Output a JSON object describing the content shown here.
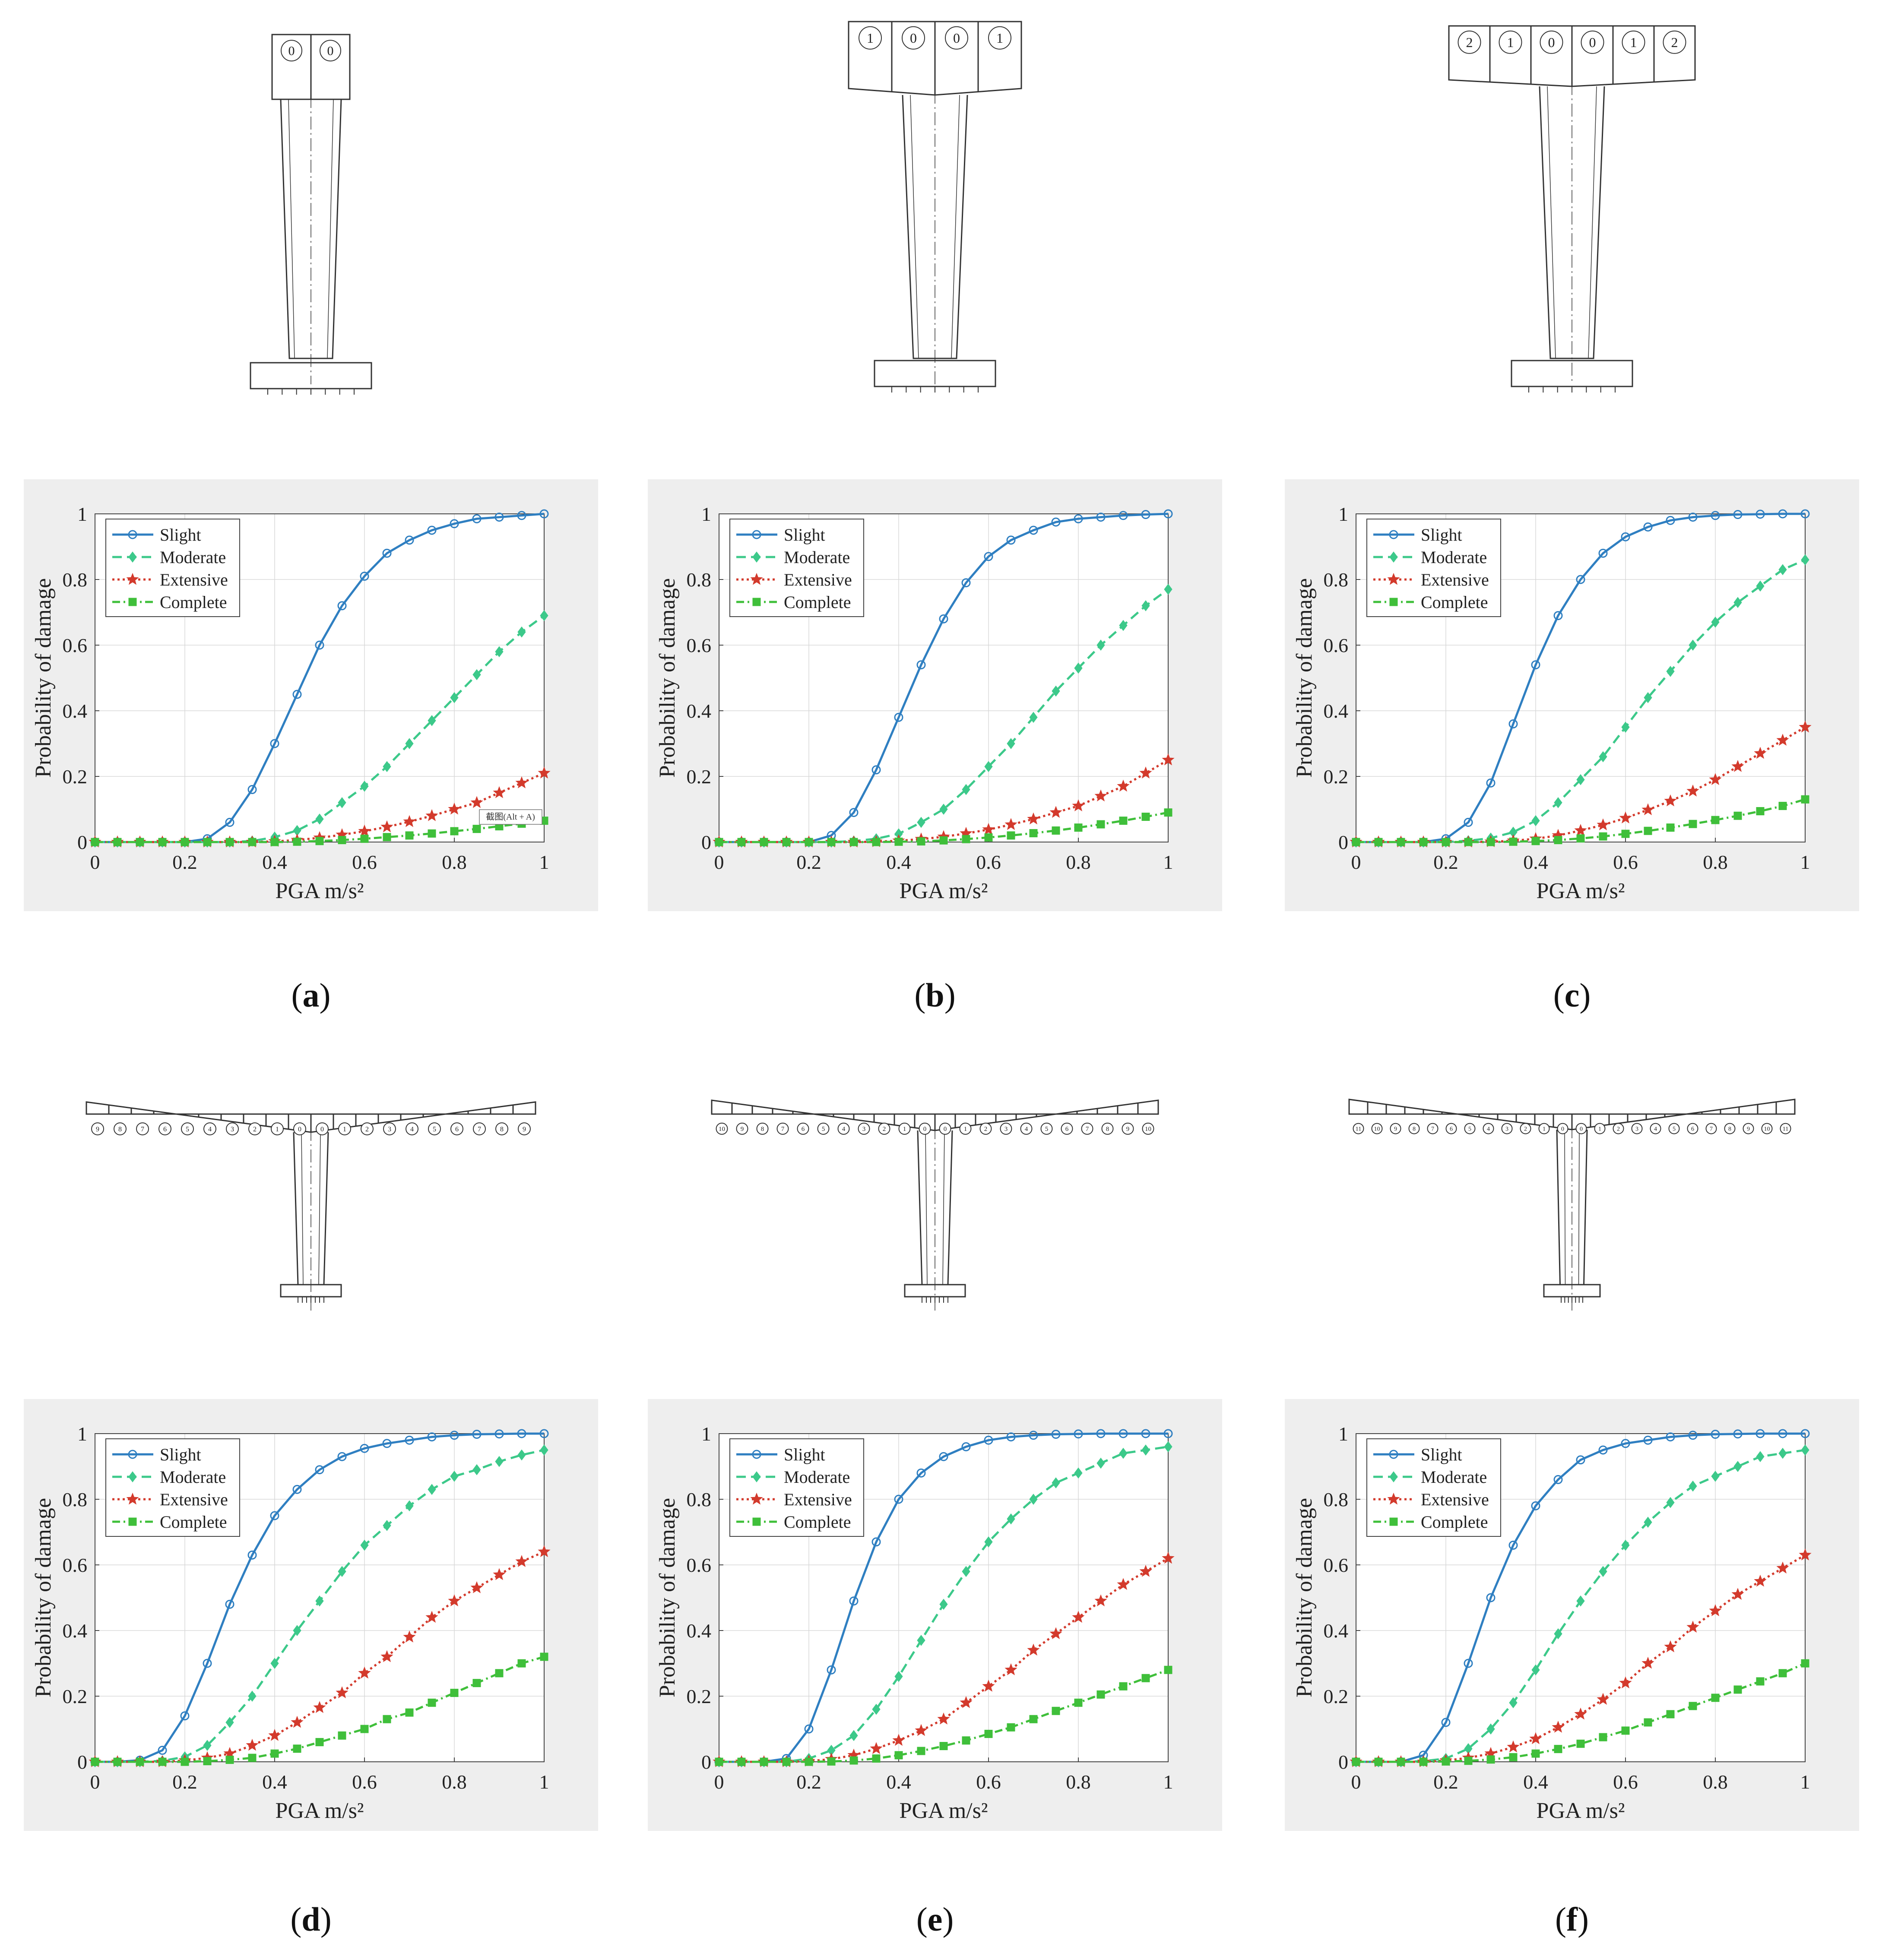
{
  "figure": {
    "panels": [
      {
        "id": "a",
        "caption_letter": "a",
        "segments": [
          "0",
          "0"
        ],
        "note": "截图(Alt + A)"
      },
      {
        "id": "b",
        "caption_letter": "b",
        "segments": [
          "1",
          "0",
          "0",
          "1"
        ]
      },
      {
        "id": "c",
        "caption_letter": "c",
        "segments": [
          "2",
          "1",
          "0",
          "0",
          "1",
          "2"
        ]
      },
      {
        "id": "d",
        "caption_letter": "d",
        "segments": [
          "9",
          "8",
          "7",
          "6",
          "5",
          "4",
          "3",
          "2",
          "1",
          "0",
          "0",
          "1",
          "2",
          "3",
          "4",
          "5",
          "6",
          "7",
          "8",
          "9"
        ]
      },
      {
        "id": "e",
        "caption_letter": "e",
        "segments": [
          "10",
          "9",
          "8",
          "7",
          "6",
          "5",
          "4",
          "3",
          "2",
          "1",
          "0",
          "0",
          "1",
          "2",
          "3",
          "4",
          "5",
          "6",
          "7",
          "8",
          "9",
          "10"
        ]
      },
      {
        "id": "f",
        "caption_letter": "f",
        "segments": [
          "11",
          "10",
          "9",
          "8",
          "7",
          "6",
          "5",
          "4",
          "3",
          "2",
          "1",
          "0",
          "0",
          "1",
          "2",
          "3",
          "4",
          "5",
          "6",
          "7",
          "8",
          "9",
          "10",
          "11"
        ]
      }
    ]
  },
  "chart_data": [
    {
      "panel": "a",
      "type": "line",
      "xlabel": "PGA  m/s²",
      "ylabel": "Probability of damage",
      "xlim": [
        0,
        1
      ],
      "ylim": [
        0,
        1
      ],
      "xticks": [
        "0",
        "0.2",
        "0.4",
        "0.6",
        "0.8",
        "1"
      ],
      "yticks": [
        "0",
        "0.2",
        "0.4",
        "0.6",
        "0.8",
        "1"
      ],
      "legend_position": "top-left",
      "x": [
        0,
        0.05,
        0.1,
        0.15,
        0.2,
        0.25,
        0.3,
        0.35,
        0.4,
        0.45,
        0.5,
        0.55,
        0.6,
        0.65,
        0.7,
        0.75,
        0.8,
        0.85,
        0.9,
        0.95,
        1.0
      ],
      "series": [
        {
          "name": "Slight",
          "color": "#2f7fc1",
          "marker": "circle",
          "dash": "solid",
          "values": [
            0,
            0,
            0,
            0,
            0,
            0.01,
            0.06,
            0.16,
            0.3,
            0.45,
            0.6,
            0.72,
            0.81,
            0.88,
            0.92,
            0.95,
            0.97,
            0.985,
            0.99,
            0.995,
            1.0
          ]
        },
        {
          "name": "Moderate",
          "color": "#3cc98a",
          "marker": "diamond",
          "dash": "dashed",
          "values": [
            0,
            0,
            0,
            0,
            0,
            0,
            0,
            0.003,
            0.015,
            0.035,
            0.07,
            0.12,
            0.17,
            0.23,
            0.3,
            0.37,
            0.44,
            0.51,
            0.58,
            0.64,
            0.69
          ]
        },
        {
          "name": "Extensive",
          "color": "#d33a2c",
          "marker": "star",
          "dash": "dotted",
          "values": [
            0,
            0,
            0,
            0,
            0,
            0,
            0,
            0,
            0.002,
            0.006,
            0.013,
            0.022,
            0.033,
            0.046,
            0.062,
            0.08,
            0.1,
            0.12,
            0.15,
            0.18,
            0.21
          ]
        },
        {
          "name": "Complete",
          "color": "#3fbf3a",
          "marker": "square",
          "dash": "dashdot",
          "values": [
            0,
            0,
            0,
            0,
            0,
            0,
            0,
            0,
            0,
            0.001,
            0.003,
            0.006,
            0.01,
            0.015,
            0.02,
            0.026,
            0.033,
            0.04,
            0.048,
            0.056,
            0.065
          ]
        }
      ]
    },
    {
      "panel": "b",
      "type": "line",
      "xlabel": "PGA  m/s²",
      "ylabel": "Probability of damage",
      "xlim": [
        0,
        1
      ],
      "ylim": [
        0,
        1
      ],
      "xticks": [
        "0",
        "0.2",
        "0.4",
        "0.6",
        "0.8",
        "1"
      ],
      "yticks": [
        "0",
        "0.2",
        "0.4",
        "0.6",
        "0.8",
        "1"
      ],
      "legend_position": "top-left",
      "x": [
        0,
        0.05,
        0.1,
        0.15,
        0.2,
        0.25,
        0.3,
        0.35,
        0.4,
        0.45,
        0.5,
        0.55,
        0.6,
        0.65,
        0.7,
        0.75,
        0.8,
        0.85,
        0.9,
        0.95,
        1.0
      ],
      "series": [
        {
          "name": "Slight",
          "color": "#2f7fc1",
          "marker": "circle",
          "dash": "solid",
          "values": [
            0,
            0,
            0,
            0,
            0,
            0.02,
            0.09,
            0.22,
            0.38,
            0.54,
            0.68,
            0.79,
            0.87,
            0.92,
            0.95,
            0.975,
            0.985,
            0.99,
            0.995,
            0.998,
            1.0
          ]
        },
        {
          "name": "Moderate",
          "color": "#3cc98a",
          "marker": "diamond",
          "dash": "dashed",
          "values": [
            0,
            0,
            0,
            0,
            0,
            0,
            0.003,
            0.01,
            0.025,
            0.06,
            0.1,
            0.16,
            0.23,
            0.3,
            0.38,
            0.46,
            0.53,
            0.6,
            0.66,
            0.72,
            0.77
          ]
        },
        {
          "name": "Extensive",
          "color": "#d33a2c",
          "marker": "star",
          "dash": "dotted",
          "values": [
            0,
            0,
            0,
            0,
            0,
            0,
            0,
            0.001,
            0.004,
            0.009,
            0.016,
            0.026,
            0.038,
            0.053,
            0.07,
            0.09,
            0.11,
            0.14,
            0.17,
            0.21,
            0.25
          ]
        },
        {
          "name": "Complete",
          "color": "#3fbf3a",
          "marker": "square",
          "dash": "dashdot",
          "values": [
            0,
            0,
            0,
            0,
            0,
            0,
            0,
            0,
            0.001,
            0.002,
            0.005,
            0.009,
            0.014,
            0.02,
            0.027,
            0.035,
            0.044,
            0.054,
            0.065,
            0.077,
            0.09
          ]
        }
      ]
    },
    {
      "panel": "c",
      "type": "line",
      "xlabel": "PGA  m/s²",
      "ylabel": "Probability of damage",
      "xlim": [
        0,
        1
      ],
      "ylim": [
        0,
        1
      ],
      "xticks": [
        "0",
        "0.2",
        "0.4",
        "0.6",
        "0.8",
        "1"
      ],
      "yticks": [
        "0",
        "0.2",
        "0.4",
        "0.6",
        "0.8",
        "1"
      ],
      "legend_position": "top-left",
      "x": [
        0,
        0.05,
        0.1,
        0.15,
        0.2,
        0.25,
        0.3,
        0.35,
        0.4,
        0.45,
        0.5,
        0.55,
        0.6,
        0.65,
        0.7,
        0.75,
        0.8,
        0.85,
        0.9,
        0.95,
        1.0
      ],
      "series": [
        {
          "name": "Slight",
          "color": "#2f7fc1",
          "marker": "circle",
          "dash": "solid",
          "values": [
            0,
            0,
            0,
            0,
            0.01,
            0.06,
            0.18,
            0.36,
            0.54,
            0.69,
            0.8,
            0.88,
            0.93,
            0.96,
            0.98,
            0.99,
            0.995,
            0.998,
            0.999,
            1.0,
            1.0
          ]
        },
        {
          "name": "Moderate",
          "color": "#3cc98a",
          "marker": "diamond",
          "dash": "dashed",
          "values": [
            0,
            0,
            0,
            0,
            0,
            0.004,
            0.012,
            0.03,
            0.065,
            0.12,
            0.19,
            0.26,
            0.35,
            0.44,
            0.52,
            0.6,
            0.67,
            0.73,
            0.78,
            0.83,
            0.86
          ]
        },
        {
          "name": "Extensive",
          "color": "#d33a2c",
          "marker": "star",
          "dash": "dotted",
          "values": [
            0,
            0,
            0,
            0,
            0,
            0,
            0.001,
            0.004,
            0.01,
            0.02,
            0.035,
            0.052,
            0.073,
            0.098,
            0.125,
            0.155,
            0.19,
            0.23,
            0.27,
            0.31,
            0.35
          ]
        },
        {
          "name": "Complete",
          "color": "#3fbf3a",
          "marker": "square",
          "dash": "dashdot",
          "values": [
            0,
            0,
            0,
            0,
            0,
            0,
            0,
            0.001,
            0.003,
            0.006,
            0.011,
            0.017,
            0.025,
            0.034,
            0.044,
            0.055,
            0.067,
            0.08,
            0.094,
            0.11,
            0.13
          ]
        }
      ]
    },
    {
      "panel": "d",
      "type": "line",
      "xlabel": "PGA  m/s²",
      "ylabel": "Probability of damage",
      "xlim": [
        0,
        1
      ],
      "ylim": [
        0,
        1
      ],
      "xticks": [
        "0",
        "0.2",
        "0.4",
        "0.6",
        "0.8",
        "1"
      ],
      "yticks": [
        "0",
        "0.2",
        "0.4",
        "0.6",
        "0.8",
        "1"
      ],
      "legend_position": "top-left",
      "x": [
        0,
        0.05,
        0.1,
        0.15,
        0.2,
        0.25,
        0.3,
        0.35,
        0.4,
        0.45,
        0.5,
        0.55,
        0.6,
        0.65,
        0.7,
        0.75,
        0.8,
        0.85,
        0.9,
        0.95,
        1.0
      ],
      "series": [
        {
          "name": "Slight",
          "color": "#2f7fc1",
          "marker": "circle",
          "dash": "solid",
          "values": [
            0,
            0,
            0.005,
            0.035,
            0.14,
            0.3,
            0.48,
            0.63,
            0.75,
            0.83,
            0.89,
            0.93,
            0.955,
            0.97,
            0.98,
            0.99,
            0.995,
            0.998,
            0.999,
            1.0,
            1.0
          ]
        },
        {
          "name": "Moderate",
          "color": "#3cc98a",
          "marker": "diamond",
          "dash": "dashed",
          "values": [
            0,
            0,
            0,
            0.003,
            0.015,
            0.05,
            0.12,
            0.2,
            0.3,
            0.4,
            0.49,
            0.58,
            0.66,
            0.72,
            0.78,
            0.83,
            0.87,
            0.89,
            0.915,
            0.935,
            0.95
          ]
        },
        {
          "name": "Extensive",
          "color": "#d33a2c",
          "marker": "star",
          "dash": "dotted",
          "values": [
            0,
            0,
            0,
            0,
            0.004,
            0.012,
            0.025,
            0.05,
            0.08,
            0.12,
            0.165,
            0.21,
            0.27,
            0.32,
            0.38,
            0.44,
            0.49,
            0.53,
            0.57,
            0.61,
            0.64
          ]
        },
        {
          "name": "Complete",
          "color": "#3fbf3a",
          "marker": "square",
          "dash": "dashdot",
          "values": [
            0,
            0,
            0,
            0,
            0,
            0.002,
            0.006,
            0.012,
            0.025,
            0.04,
            0.06,
            0.08,
            0.1,
            0.13,
            0.15,
            0.18,
            0.21,
            0.24,
            0.27,
            0.3,
            0.32
          ]
        }
      ]
    },
    {
      "panel": "e",
      "type": "line",
      "xlabel": "PGA  m/s²",
      "ylabel": "Probability of damage",
      "xlim": [
        0,
        1
      ],
      "ylim": [
        0,
        1
      ],
      "xticks": [
        "0",
        "0.2",
        "0.4",
        "0.6",
        "0.8",
        "1"
      ],
      "yticks": [
        "0",
        "0.2",
        "0.4",
        "0.6",
        "0.8",
        "1"
      ],
      "legend_position": "top-left",
      "x": [
        0,
        0.05,
        0.1,
        0.15,
        0.2,
        0.25,
        0.3,
        0.35,
        0.4,
        0.45,
        0.5,
        0.55,
        0.6,
        0.65,
        0.7,
        0.75,
        0.8,
        0.85,
        0.9,
        0.95,
        1.0
      ],
      "series": [
        {
          "name": "Slight",
          "color": "#2f7fc1",
          "marker": "circle",
          "dash": "solid",
          "values": [
            0,
            0,
            0,
            0.01,
            0.1,
            0.28,
            0.49,
            0.67,
            0.8,
            0.88,
            0.93,
            0.96,
            0.98,
            0.99,
            0.995,
            0.998,
            0.999,
            1.0,
            1.0,
            1.0,
            1.0
          ]
        },
        {
          "name": "Moderate",
          "color": "#3cc98a",
          "marker": "diamond",
          "dash": "dashed",
          "values": [
            0,
            0,
            0,
            0,
            0.01,
            0.035,
            0.08,
            0.16,
            0.26,
            0.37,
            0.48,
            0.58,
            0.67,
            0.74,
            0.8,
            0.85,
            0.88,
            0.91,
            0.94,
            0.95,
            0.96
          ]
        },
        {
          "name": "Extensive",
          "color": "#d33a2c",
          "marker": "star",
          "dash": "dotted",
          "values": [
            0,
            0,
            0,
            0,
            0.002,
            0.008,
            0.02,
            0.04,
            0.065,
            0.095,
            0.13,
            0.18,
            0.23,
            0.28,
            0.34,
            0.39,
            0.44,
            0.49,
            0.54,
            0.58,
            0.62
          ]
        },
        {
          "name": "Complete",
          "color": "#3fbf3a",
          "marker": "square",
          "dash": "dashdot",
          "values": [
            0,
            0,
            0,
            0,
            0,
            0.001,
            0.004,
            0.01,
            0.02,
            0.033,
            0.048,
            0.065,
            0.085,
            0.105,
            0.13,
            0.155,
            0.18,
            0.205,
            0.23,
            0.255,
            0.28
          ]
        }
      ]
    },
    {
      "panel": "f",
      "type": "line",
      "xlabel": "PGA  m/s²",
      "ylabel": "Probability of damage",
      "xlim": [
        0,
        1
      ],
      "ylim": [
        0,
        1
      ],
      "xticks": [
        "0",
        "0.2",
        "0.4",
        "0.6",
        "0.8",
        "1"
      ],
      "yticks": [
        "0",
        "0.2",
        "0.4",
        "0.6",
        "0.8",
        "1"
      ],
      "legend_position": "top-left",
      "x": [
        0,
        0.05,
        0.1,
        0.15,
        0.2,
        0.25,
        0.3,
        0.35,
        0.4,
        0.45,
        0.5,
        0.55,
        0.6,
        0.65,
        0.7,
        0.75,
        0.8,
        0.85,
        0.9,
        0.95,
        1.0
      ],
      "series": [
        {
          "name": "Slight",
          "color": "#2f7fc1",
          "marker": "circle",
          "dash": "solid",
          "values": [
            0,
            0,
            0,
            0.02,
            0.12,
            0.3,
            0.5,
            0.66,
            0.78,
            0.86,
            0.92,
            0.95,
            0.97,
            0.98,
            0.99,
            0.995,
            0.998,
            0.999,
            1.0,
            1.0,
            1.0
          ]
        },
        {
          "name": "Moderate",
          "color": "#3cc98a",
          "marker": "diamond",
          "dash": "dashed",
          "values": [
            0,
            0,
            0,
            0.002,
            0.01,
            0.04,
            0.1,
            0.18,
            0.28,
            0.39,
            0.49,
            0.58,
            0.66,
            0.73,
            0.79,
            0.84,
            0.87,
            0.9,
            0.93,
            0.94,
            0.95
          ]
        },
        {
          "name": "Extensive",
          "color": "#d33a2c",
          "marker": "star",
          "dash": "dotted",
          "values": [
            0,
            0,
            0,
            0,
            0.004,
            0.012,
            0.025,
            0.045,
            0.07,
            0.105,
            0.145,
            0.19,
            0.24,
            0.3,
            0.35,
            0.41,
            0.46,
            0.51,
            0.55,
            0.59,
            0.63
          ]
        },
        {
          "name": "Complete",
          "color": "#3fbf3a",
          "marker": "square",
          "dash": "dashdot",
          "values": [
            0,
            0,
            0,
            0,
            0.001,
            0.003,
            0.007,
            0.014,
            0.025,
            0.039,
            0.055,
            0.075,
            0.095,
            0.12,
            0.145,
            0.17,
            0.195,
            0.22,
            0.245,
            0.27,
            0.3
          ]
        }
      ]
    }
  ]
}
